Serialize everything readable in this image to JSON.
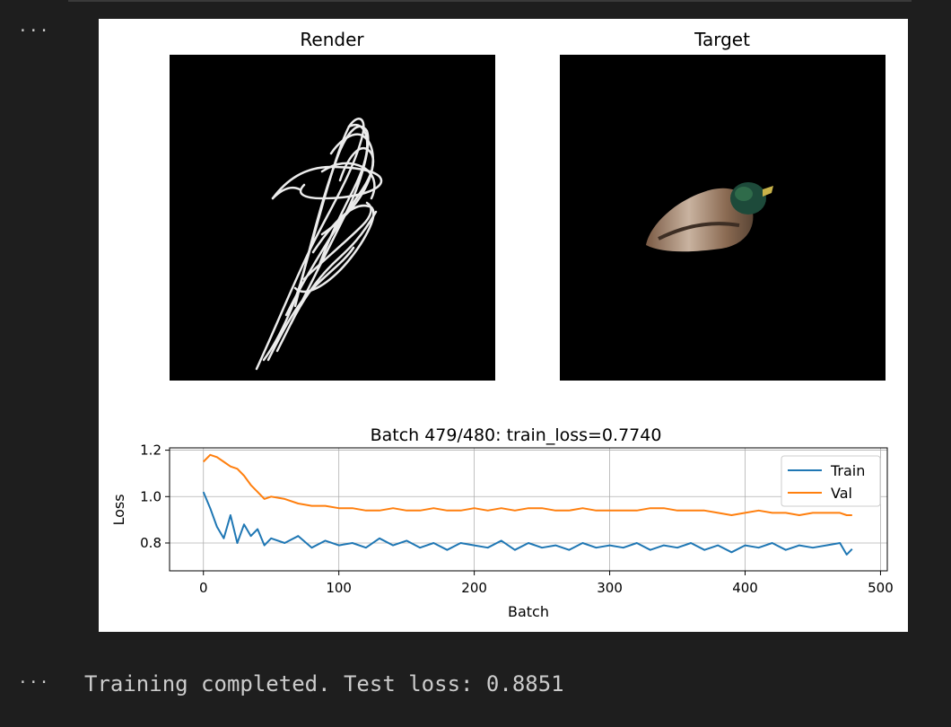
{
  "cells": {
    "output_ellipsis": "···",
    "stdout_ellipsis": "···",
    "stdout_text": "Training completed. Test loss: 0.8851"
  },
  "figure": {
    "render_title": "Render",
    "target_title": "Target"
  },
  "icons": [
    "more-icon"
  ],
  "colors": {
    "background": "#1e1e1e",
    "train": "#1f77b4",
    "val": "#ff7f0e"
  },
  "chart_data": {
    "type": "line",
    "title": "Batch 479/480: train_loss=0.7740",
    "xlabel": "Batch",
    "ylabel": "Loss",
    "xlim": [
      -25,
      505
    ],
    "ylim": [
      0.68,
      1.21
    ],
    "xticks": [
      0,
      100,
      200,
      300,
      400,
      500
    ],
    "yticks": [
      0.8,
      1.0,
      1.2
    ],
    "grid": true,
    "legend": "top-right",
    "series": [
      {
        "name": "Train",
        "x": [
          0,
          5,
          10,
          15,
          20,
          25,
          30,
          35,
          40,
          45,
          50,
          60,
          70,
          80,
          90,
          100,
          110,
          120,
          130,
          140,
          150,
          160,
          170,
          180,
          190,
          200,
          210,
          220,
          230,
          240,
          250,
          260,
          270,
          280,
          290,
          300,
          310,
          320,
          330,
          340,
          350,
          360,
          370,
          380,
          390,
          400,
          410,
          420,
          430,
          440,
          450,
          460,
          470,
          475,
          479
        ],
        "values": [
          1.02,
          0.95,
          0.87,
          0.82,
          0.92,
          0.8,
          0.88,
          0.83,
          0.86,
          0.79,
          0.82,
          0.8,
          0.83,
          0.78,
          0.81,
          0.79,
          0.8,
          0.78,
          0.82,
          0.79,
          0.81,
          0.78,
          0.8,
          0.77,
          0.8,
          0.79,
          0.78,
          0.81,
          0.77,
          0.8,
          0.78,
          0.79,
          0.77,
          0.8,
          0.78,
          0.79,
          0.78,
          0.8,
          0.77,
          0.79,
          0.78,
          0.8,
          0.77,
          0.79,
          0.76,
          0.79,
          0.78,
          0.8,
          0.77,
          0.79,
          0.78,
          0.79,
          0.8,
          0.75,
          0.774
        ]
      },
      {
        "name": "Val",
        "x": [
          0,
          5,
          10,
          15,
          20,
          25,
          30,
          35,
          40,
          45,
          50,
          60,
          70,
          80,
          90,
          100,
          110,
          120,
          130,
          140,
          150,
          160,
          170,
          180,
          190,
          200,
          210,
          220,
          230,
          240,
          250,
          260,
          270,
          280,
          290,
          300,
          310,
          320,
          330,
          340,
          350,
          360,
          370,
          380,
          390,
          400,
          410,
          420,
          430,
          440,
          450,
          460,
          470,
          475,
          479
        ],
        "values": [
          1.15,
          1.18,
          1.17,
          1.15,
          1.13,
          1.12,
          1.09,
          1.05,
          1.02,
          0.99,
          1.0,
          0.99,
          0.97,
          0.96,
          0.96,
          0.95,
          0.95,
          0.94,
          0.94,
          0.95,
          0.94,
          0.94,
          0.95,
          0.94,
          0.94,
          0.95,
          0.94,
          0.95,
          0.94,
          0.95,
          0.95,
          0.94,
          0.94,
          0.95,
          0.94,
          0.94,
          0.94,
          0.94,
          0.95,
          0.95,
          0.94,
          0.94,
          0.94,
          0.93,
          0.92,
          0.93,
          0.94,
          0.93,
          0.93,
          0.92,
          0.93,
          0.93,
          0.93,
          0.92,
          0.92
        ]
      }
    ]
  }
}
